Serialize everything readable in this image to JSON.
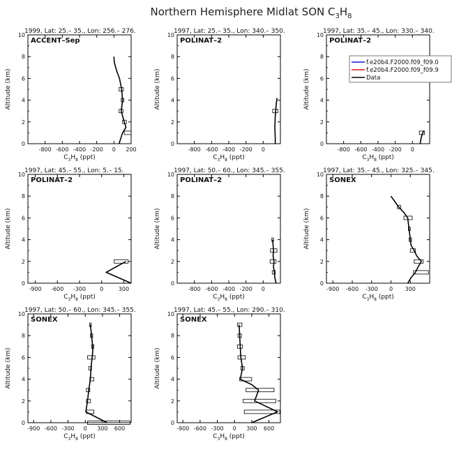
{
  "figure": {
    "title": "Northern Hemisphere Midlat SON C",
    "title_sub": "3",
    "title_tail": "H",
    "title_sub2": "8"
  },
  "axis_text": {
    "ylabel": "Altitude (km)",
    "xlabel_main": "C",
    "xlabel_sub1": "3",
    "xlabel_mid": "H",
    "xlabel_sub2": "8",
    "xlabel_tail": " (ppt)"
  },
  "legend": {
    "entries": [
      {
        "label": "f.e20b4.F2000.f09_f09.0",
        "color": "#1515d8"
      },
      {
        "label": "f.e20b4.F2000.f09_f09.9",
        "color": "#d81515"
      },
      {
        "label": "Data",
        "color": "#000000"
      }
    ]
  },
  "chart_data": [
    {
      "type": "line",
      "header": "1999, Lat: 25.– 35., Lon: 256.– 276.",
      "campaign": "ACCENT–Sep",
      "xlim": [
        -1000,
        200
      ],
      "xticks": [
        -800,
        -600,
        -400,
        -200,
        0,
        200
      ],
      "ylim": [
        0,
        10
      ],
      "yticks": [
        0,
        2,
        4,
        6,
        8,
        10
      ],
      "series": [
        {
          "points": [
            [
              0,
              8
            ],
            [
              5,
              7.5
            ],
            [
              20,
              7
            ],
            [
              40,
              6.5
            ],
            [
              65,
              6
            ],
            [
              90,
              5
            ],
            [
              100,
              4
            ],
            [
              85,
              3
            ],
            [
              120,
              2
            ],
            [
              140,
              1.5
            ],
            [
              100,
              1
            ],
            [
              60,
              0
            ]
          ]
        }
      ],
      "bars": [
        {
          "y": 5,
          "lo": 60,
          "hi": 110
        },
        {
          "y": 4,
          "lo": 85,
          "hi": 115
        },
        {
          "y": 3,
          "lo": 60,
          "hi": 105
        },
        {
          "y": 2,
          "lo": 100,
          "hi": 145
        },
        {
          "y": 1,
          "lo": 120,
          "hi": 200
        }
      ]
    },
    {
      "type": "line",
      "header": "1997, Lat: 25.– 35., Lon: 340.– 350.",
      "campaign": "POLINAT–2",
      "xlim": [
        -1000,
        200
      ],
      "xticks": [
        -800,
        -600,
        -400,
        -200,
        0
      ],
      "ylim": [
        0,
        10
      ],
      "yticks": [
        0,
        2,
        4,
        6,
        8,
        10
      ],
      "series": [
        {
          "points": [
            [
              160,
              4.2
            ],
            [
              150,
              3.5
            ],
            [
              145,
              3
            ],
            [
              140,
              2.5
            ],
            [
              135,
              1.5
            ],
            [
              140,
              0.5
            ],
            [
              140,
              0
            ]
          ]
        }
      ],
      "bars": [
        {
          "y": 3,
          "lo": 110,
          "hi": 170
        }
      ]
    },
    {
      "type": "line",
      "header": "1997, Lat: 35.– 45., Lon: 330.– 340.",
      "campaign": "POLINAT–2",
      "xlim": [
        -1000,
        200
      ],
      "xticks": [
        -800,
        -600,
        -400,
        -200,
        0
      ],
      "ylim": [
        0,
        10
      ],
      "yticks": [
        0,
        2,
        4,
        6,
        8,
        10
      ],
      "series": [
        {
          "points": [
            [
              130,
              1.2
            ],
            [
              110,
              0.8
            ],
            [
              95,
              0.3
            ],
            [
              90,
              0
            ]
          ]
        }
      ],
      "bars": [
        {
          "y": 1,
          "lo": 80,
          "hi": 140
        }
      ],
      "has_legend": true
    },
    {
      "type": "line",
      "header": "1997, Lat: 45.– 55., Lon: 5.– 15.",
      "campaign": "POLINAT–2",
      "xlim": [
        -1000,
        400
      ],
      "xticks": [
        -900,
        -600,
        -300,
        0,
        300
      ],
      "ylim": [
        0,
        10
      ],
      "yticks": [
        0,
        2,
        4,
        6,
        8,
        10
      ],
      "series": [
        {
          "points": [
            [
              330,
              2
            ],
            [
              60,
              1
            ],
            [
              400,
              0
            ]
          ]
        }
      ],
      "bars": [
        {
          "y": 2,
          "lo": 170,
          "hi": 360
        }
      ]
    },
    {
      "type": "line",
      "header": "1997, Lat: 50.– 60., Lon: 345.– 355.",
      "campaign": "POLINAT–2",
      "xlim": [
        -1000,
        200
      ],
      "xticks": [
        -800,
        -600,
        -400,
        -200,
        0
      ],
      "ylim": [
        0,
        10
      ],
      "yticks": [
        0,
        2,
        4,
        6,
        8,
        10
      ],
      "series": [
        {
          "points": [
            [
              110,
              4
            ],
            [
              115,
              3.5
            ],
            [
              120,
              3
            ],
            [
              115,
              2.5
            ],
            [
              125,
              2
            ],
            [
              120,
              1.5
            ],
            [
              130,
              1
            ],
            [
              135,
              0.5
            ],
            [
              150,
              0
            ]
          ]
        }
      ],
      "bars": [
        {
          "y": 4,
          "lo": 100,
          "hi": 120
        },
        {
          "y": 3,
          "lo": 85,
          "hi": 160
        },
        {
          "y": 2,
          "lo": 80,
          "hi": 150
        },
        {
          "y": 1,
          "lo": 105,
          "hi": 140
        }
      ]
    },
    {
      "type": "line",
      "header": "1997, Lat: 35.– 45., Lon: 325.– 345.",
      "campaign": "SONEX",
      "xlim": [
        -1000,
        600
      ],
      "xticks": [
        -900,
        -600,
        -300,
        0,
        300
      ],
      "ylim": [
        0,
        10
      ],
      "yticks": [
        0,
        2,
        4,
        6,
        8,
        10
      ],
      "series": [
        {
          "points": [
            [
              0,
              8
            ],
            [
              60,
              7.5
            ],
            [
              120,
              7
            ],
            [
              200,
              6.5
            ],
            [
              260,
              6
            ],
            [
              280,
              5
            ],
            [
              300,
              4
            ],
            [
              310,
              3.5
            ],
            [
              360,
              3
            ],
            [
              400,
              2.5
            ],
            [
              470,
              2
            ],
            [
              420,
              1.5
            ],
            [
              380,
              1
            ],
            [
              310,
              0.5
            ],
            [
              260,
              0
            ]
          ]
        }
      ],
      "bars": [
        {
          "y": 7,
          "lo": 100,
          "hi": 150
        },
        {
          "y": 6,
          "lo": 200,
          "hi": 330
        },
        {
          "y": 5,
          "lo": 270,
          "hi": 300
        },
        {
          "y": 4,
          "lo": 280,
          "hi": 320
        },
        {
          "y": 3,
          "lo": 300,
          "hi": 380
        },
        {
          "y": 2,
          "lo": 360,
          "hi": 500
        },
        {
          "y": 1,
          "lo": 350,
          "hi": 580
        }
      ]
    },
    {
      "type": "line",
      "header": "1997, Lat: 50.– 60., Lon: 345.– 355.",
      "campaign": "SONEX",
      "xlim": [
        -1000,
        800
      ],
      "xticks": [
        -900,
        -600,
        -300,
        0,
        300,
        600
      ],
      "ylim": [
        0,
        10
      ],
      "yticks": [
        0,
        2,
        4,
        6,
        8,
        10
      ],
      "series": [
        {
          "points": [
            [
              90,
              9
            ],
            [
              110,
              8
            ],
            [
              130,
              7
            ],
            [
              130,
              6.5
            ],
            [
              120,
              6
            ],
            [
              100,
              5
            ],
            [
              90,
              4
            ],
            [
              60,
              3
            ],
            [
              40,
              2
            ],
            [
              10,
              1
            ],
            [
              380,
              0
            ]
          ]
        }
      ],
      "bars": [
        {
          "y": 9,
          "lo": 75,
          "hi": 105
        },
        {
          "y": 8,
          "lo": 90,
          "hi": 130
        },
        {
          "y": 7,
          "lo": 110,
          "hi": 150
        },
        {
          "y": 6,
          "lo": 40,
          "hi": 170
        },
        {
          "y": 5,
          "lo": 60,
          "hi": 110
        },
        {
          "y": 4,
          "lo": 80,
          "hi": 150
        },
        {
          "y": 3,
          "lo": 20,
          "hi": 80
        },
        {
          "y": 2,
          "lo": 20,
          "hi": 90
        },
        {
          "y": 1,
          "lo": 20,
          "hi": 150
        },
        {
          "y": 0,
          "lo": 40,
          "hi": 780
        }
      ]
    },
    {
      "type": "line",
      "header": "1997, Lat: 45.– 55., Lon: 290.– 310.",
      "campaign": "SONEX",
      "xlim": [
        -1000,
        800
      ],
      "xticks": [
        -900,
        -600,
        -300,
        0,
        300,
        600
      ],
      "ylim": [
        0,
        10
      ],
      "yticks": [
        0,
        2,
        4,
        6,
        8,
        10
      ],
      "series": [
        {
          "points": [
            [
              80,
              9
            ],
            [
              90,
              8
            ],
            [
              100,
              7
            ],
            [
              110,
              6
            ],
            [
              140,
              5
            ],
            [
              100,
              4
            ],
            [
              300,
              3.5
            ],
            [
              420,
              3
            ],
            [
              350,
              2
            ],
            [
              750,
              1
            ],
            [
              300,
              0
            ]
          ]
        }
      ],
      "bars": [
        {
          "y": 9,
          "lo": 50,
          "hi": 130
        },
        {
          "y": 8,
          "lo": 60,
          "hi": 120
        },
        {
          "y": 7,
          "lo": 50,
          "hi": 140
        },
        {
          "y": 6,
          "lo": 60,
          "hi": 190
        },
        {
          "y": 5,
          "lo": 110,
          "hi": 170
        },
        {
          "y": 4,
          "lo": 90,
          "hi": 300
        },
        {
          "y": 3,
          "lo": 200,
          "hi": 690
        },
        {
          "y": 2,
          "lo": 150,
          "hi": 720
        },
        {
          "y": 1,
          "lo": 170,
          "hi": 790
        }
      ]
    }
  ]
}
